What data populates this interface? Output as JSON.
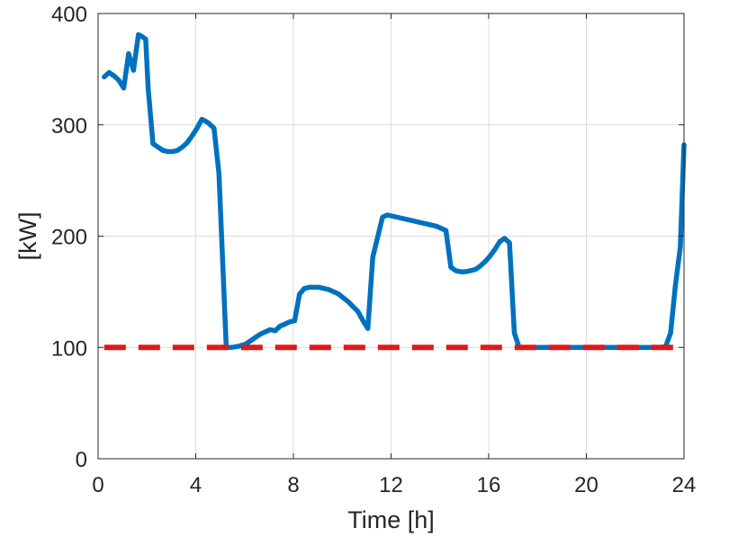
{
  "chart_data": {
    "type": "line",
    "title": "",
    "xlabel": "Time [h]",
    "ylabel": "[kW]",
    "xlim": [
      0,
      24
    ],
    "ylim": [
      0,
      400
    ],
    "xticks": [
      0,
      4,
      8,
      12,
      16,
      20,
      24
    ],
    "yticks": [
      0,
      100,
      200,
      300,
      400
    ],
    "xtick_labels": [
      "0",
      "4",
      "8",
      "12",
      "16",
      "20",
      "24"
    ],
    "ytick_labels": [
      "0",
      "100",
      "200",
      "300",
      "400"
    ],
    "grid": true,
    "legend": "none",
    "series": [
      {
        "color": "#0072BD",
        "style": "solid",
        "x": [
          0.25,
          0.45,
          0.65,
          0.85,
          1.05,
          1.25,
          1.45,
          1.65,
          1.75,
          1.95,
          2.05,
          2.25,
          2.45,
          2.65,
          2.85,
          3.05,
          3.25,
          3.45,
          3.65,
          3.85,
          4.05,
          4.25,
          4.5,
          4.75,
          4.95,
          5.25,
          5.45,
          5.75,
          6.05,
          6.25,
          6.65,
          7.05,
          7.25,
          7.45,
          7.65,
          7.85,
          8.05,
          8.25,
          8.45,
          8.65,
          8.85,
          9.05,
          9.45,
          9.85,
          10.25,
          10.65,
          10.85,
          11.05,
          11.25,
          11.45,
          11.65,
          11.85,
          12.25,
          12.65,
          13.05,
          13.45,
          13.85,
          14.05,
          14.25,
          14.45,
          14.65,
          14.85,
          15.05,
          15.25,
          15.45,
          15.65,
          15.85,
          16.05,
          16.25,
          16.45,
          16.65,
          16.85,
          17.05,
          17.25,
          18.05,
          19.05,
          20.05,
          21.05,
          22.05,
          22.85,
          23.05,
          23.25,
          23.45,
          23.65,
          23.85,
          24.0
        ],
        "y": [
          343,
          347,
          344,
          340,
          333,
          364,
          349,
          381,
          380,
          377,
          333,
          283,
          280,
          277,
          276,
          276,
          277,
          280,
          284,
          290,
          297,
          305,
          302,
          297,
          256,
          100,
          100,
          101,
          103,
          106,
          112,
          116,
          115,
          119,
          121,
          123,
          124,
          148,
          153,
          154,
          154,
          154,
          152,
          148,
          141,
          132,
          124,
          117,
          181,
          199,
          217,
          219,
          217,
          215,
          213,
          211,
          209,
          207,
          205,
          172,
          169,
          168,
          168,
          169,
          170,
          173,
          177,
          182,
          188,
          195,
          198,
          194,
          113,
          100,
          100,
          100,
          100,
          100,
          100,
          100,
          100,
          101,
          113,
          156,
          190,
          282
        ]
      },
      {
        "color": "#E01919",
        "style": "dashed",
        "x": [
          0.25,
          24.0
        ],
        "y": [
          100,
          100
        ]
      }
    ]
  }
}
